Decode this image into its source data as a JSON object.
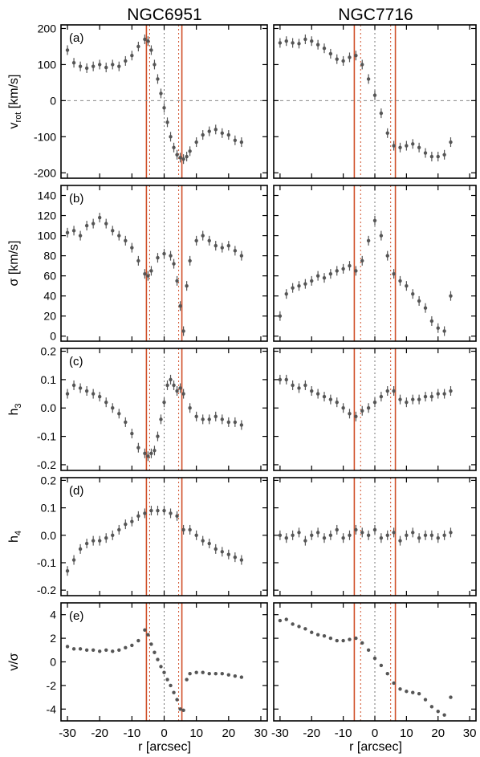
{
  "figure": {
    "columns": [
      "NGC6951",
      "NGC7716"
    ],
    "xlabel": "r [arcsec]",
    "x_ticks": [
      -30,
      -20,
      -10,
      0,
      10,
      20,
      30
    ],
    "rows": [
      {
        "letter": "(a)",
        "ylabel": "v",
        "ylabel_sub": "rot",
        "ylabel_rest": " [km/s]",
        "ylim": [
          -215,
          210
        ],
        "ticks": [
          -200,
          -100,
          0,
          100,
          200
        ]
      },
      {
        "letter": "(b)",
        "ylabel": "σ [km/s]",
        "ylim": [
          -5,
          150
        ],
        "ticks": [
          0,
          20,
          40,
          60,
          80,
          100,
          120,
          140
        ]
      },
      {
        "letter": "(c)",
        "ylabel": "h",
        "ylabel_sub": "3",
        "ylim": [
          -0.22,
          0.21
        ],
        "ticks": [
          "-0.2",
          "-0.1",
          "0.0",
          "0.1",
          "0.2"
        ]
      },
      {
        "letter": "(d)",
        "ylabel": "h",
        "ylabel_sub": "4",
        "ylim": [
          -0.22,
          0.21
        ],
        "ticks": [
          "-0.2",
          "-0.1",
          "0.0",
          "0.1",
          "0.2"
        ]
      },
      {
        "letter": "(e)",
        "ylabel": "v/σ",
        "ylim": [
          -5,
          5
        ],
        "ticks": [
          -4,
          -2,
          0,
          2,
          4
        ]
      }
    ]
  },
  "chart_data": [
    {
      "type": "scatter",
      "galaxy": "NGC6951",
      "xlim": [
        -32,
        32
      ],
      "solid_lines": [
        -5.5,
        5.5
      ],
      "dotted_red_lines": [
        -4.5,
        4.5
      ],
      "dotted_black_lines": [
        0
      ],
      "panels": {
        "v_rot": {
          "x": [
            -30,
            -28,
            -26,
            -24,
            -22,
            -20,
            -18,
            -16,
            -14,
            -12,
            -10,
            -8,
            -6,
            -5,
            -4,
            -3,
            -2,
            -1,
            0,
            1,
            2,
            3,
            4,
            5,
            6,
            7,
            8,
            10,
            12,
            14,
            16,
            18,
            20,
            22,
            24
          ],
          "y": [
            140,
            105,
            95,
            90,
            95,
            100,
            92,
            100,
            95,
            110,
            125,
            150,
            170,
            165,
            140,
            100,
            60,
            20,
            -20,
            -60,
            -100,
            -130,
            -150,
            -158,
            -162,
            -155,
            -140,
            -115,
            -95,
            -85,
            -80,
            -90,
            -95,
            -110,
            -115
          ],
          "zero_line": 0
        },
        "sigma": {
          "x": [
            -30,
            -28,
            -26,
            -24,
            -22,
            -20,
            -18,
            -16,
            -14,
            -12,
            -10,
            -8,
            -6,
            -5,
            -4,
            -2,
            0,
            2,
            3,
            4,
            5,
            6,
            7,
            8,
            10,
            12,
            14,
            16,
            18,
            20,
            22,
            24
          ],
          "y": [
            103,
            105,
            100,
            110,
            112,
            118,
            112,
            105,
            100,
            95,
            88,
            75,
            62,
            60,
            65,
            78,
            82,
            80,
            72,
            55,
            30,
            5,
            50,
            75,
            95,
            100,
            95,
            90,
            88,
            90,
            85,
            80
          ]
        },
        "h3": {
          "x": [
            -30,
            -28,
            -26,
            -24,
            -22,
            -20,
            -18,
            -16,
            -14,
            -12,
            -10,
            -8,
            -6,
            -5,
            -4,
            -3,
            -2,
            -1,
            0,
            1,
            2,
            3,
            4,
            5,
            6,
            8,
            10,
            12,
            14,
            16,
            18,
            20,
            22,
            24
          ],
          "y": [
            0.05,
            0.08,
            0.07,
            0.06,
            0.05,
            0.04,
            0.02,
            0.0,
            -0.02,
            -0.05,
            -0.09,
            -0.14,
            -0.16,
            -0.17,
            -0.16,
            -0.15,
            -0.1,
            -0.04,
            0.02,
            0.08,
            0.1,
            0.08,
            0.06,
            0.07,
            0.05,
            0.0,
            -0.03,
            -0.04,
            -0.04,
            -0.03,
            -0.04,
            -0.05,
            -0.05,
            -0.06
          ]
        },
        "h4": {
          "x": [
            -30,
            -28,
            -26,
            -24,
            -22,
            -20,
            -18,
            -16,
            -14,
            -12,
            -10,
            -8,
            -6,
            -4,
            -2,
            0,
            2,
            4,
            6,
            8,
            10,
            12,
            14,
            16,
            18,
            20,
            22,
            24
          ],
          "y": [
            -0.13,
            -0.09,
            -0.05,
            -0.03,
            -0.02,
            -0.02,
            -0.01,
            0.0,
            0.02,
            0.04,
            0.05,
            0.07,
            0.08,
            0.09,
            0.09,
            0.09,
            0.08,
            0.07,
            0.02,
            0.02,
            0.0,
            -0.02,
            -0.03,
            -0.05,
            -0.06,
            -0.07,
            -0.08,
            -0.09
          ]
        },
        "v_over_sigma": {
          "x": [
            -30,
            -28,
            -26,
            -24,
            -22,
            -20,
            -18,
            -16,
            -14,
            -12,
            -10,
            -8,
            -6,
            -5,
            -4,
            -3,
            -2,
            -1,
            0,
            1,
            2,
            3,
            4,
            5,
            6,
            7,
            8,
            10,
            12,
            14,
            16,
            18,
            20,
            22,
            24
          ],
          "y": [
            1.3,
            1.1,
            1.1,
            1.0,
            1.0,
            0.9,
            1.0,
            0.9,
            1.0,
            1.2,
            1.4,
            1.8,
            2.7,
            2.3,
            1.5,
            0.8,
            0.2,
            -0.4,
            -0.9,
            -1.5,
            -2.0,
            -2.6,
            -3.2,
            -4.0,
            -4.1,
            -1.5,
            -1.0,
            -0.9,
            -0.9,
            -1.0,
            -1.0,
            -1.0,
            -1.1,
            -1.2,
            -1.3
          ]
        }
      }
    },
    {
      "type": "scatter",
      "galaxy": "NGC7716",
      "xlim": [
        -32,
        32
      ],
      "solid_lines": [
        -6.5,
        6.5
      ],
      "dotted_red_lines": [
        -4.5,
        5
      ],
      "dotted_black_lines": [
        0
      ],
      "panels": {
        "v_rot": {
          "x": [
            -30,
            -28,
            -26,
            -24,
            -22,
            -20,
            -18,
            -16,
            -14,
            -12,
            -10,
            -8,
            -6,
            -4,
            -2,
            0,
            2,
            4,
            6,
            8,
            10,
            12,
            14,
            16,
            18,
            20,
            22,
            24
          ],
          "y": [
            160,
            165,
            160,
            158,
            170,
            165,
            155,
            145,
            130,
            115,
            110,
            120,
            125,
            100,
            60,
            15,
            -35,
            -90,
            -125,
            -130,
            -125,
            -120,
            -130,
            -145,
            -155,
            -155,
            -150,
            -115
          ],
          "zero_line": 0
        },
        "sigma": {
          "x": [
            -30,
            -28,
            -26,
            -24,
            -22,
            -20,
            -18,
            -16,
            -14,
            -12,
            -10,
            -8,
            -6,
            -4,
            -2,
            0,
            2,
            4,
            6,
            8,
            10,
            12,
            14,
            16,
            18,
            20,
            22,
            24
          ],
          "y": [
            20,
            42,
            48,
            50,
            52,
            55,
            60,
            58,
            62,
            65,
            67,
            70,
            65,
            75,
            95,
            115,
            100,
            80,
            62,
            55,
            50,
            42,
            35,
            28,
            15,
            8,
            5,
            40
          ]
        },
        "h3": {
          "x": [
            -30,
            -28,
            -26,
            -24,
            -22,
            -20,
            -18,
            -16,
            -14,
            -12,
            -10,
            -8,
            -6,
            -4,
            -2,
            0,
            2,
            4,
            6,
            8,
            10,
            12,
            14,
            16,
            18,
            20,
            22,
            24
          ],
          "y": [
            0.1,
            0.1,
            0.08,
            0.07,
            0.08,
            0.06,
            0.05,
            0.04,
            0.03,
            0.02,
            0.0,
            -0.02,
            -0.03,
            -0.01,
            0.0,
            0.02,
            0.04,
            0.06,
            0.06,
            0.03,
            0.02,
            0.03,
            0.03,
            0.04,
            0.04,
            0.05,
            0.05,
            0.06
          ]
        },
        "h4": {
          "x": [
            -30,
            -28,
            -26,
            -24,
            -22,
            -20,
            -18,
            -16,
            -14,
            -12,
            -10,
            -8,
            -6,
            -4,
            -2,
            0,
            2,
            4,
            6,
            8,
            10,
            12,
            14,
            16,
            18,
            20,
            22,
            24
          ],
          "y": [
            0.0,
            -0.01,
            0.0,
            0.01,
            -0.02,
            0.0,
            0.01,
            -0.01,
            0.0,
            0.02,
            -0.01,
            0.0,
            0.02,
            0.01,
            0.0,
            0.02,
            -0.01,
            0.0,
            0.01,
            -0.02,
            0.0,
            0.01,
            -0.01,
            0.0,
            0.0,
            -0.01,
            0.0,
            0.01
          ]
        },
        "v_over_sigma": {
          "x": [
            -30,
            -28,
            -26,
            -24,
            -22,
            -20,
            -18,
            -16,
            -14,
            -12,
            -10,
            -8,
            -6,
            -4,
            -2,
            0,
            2,
            4,
            6,
            8,
            10,
            12,
            14,
            16,
            18,
            20,
            22,
            24
          ],
          "y": [
            3.5,
            3.6,
            3.2,
            3.0,
            2.8,
            2.5,
            2.3,
            2.2,
            2.0,
            1.8,
            1.8,
            1.9,
            2.0,
            1.6,
            1.0,
            0.3,
            -0.3,
            -1.0,
            -1.8,
            -2.3,
            -2.5,
            -2.6,
            -2.7,
            -3.2,
            -3.8,
            -4.2,
            -4.5,
            -3.0
          ]
        }
      }
    }
  ]
}
